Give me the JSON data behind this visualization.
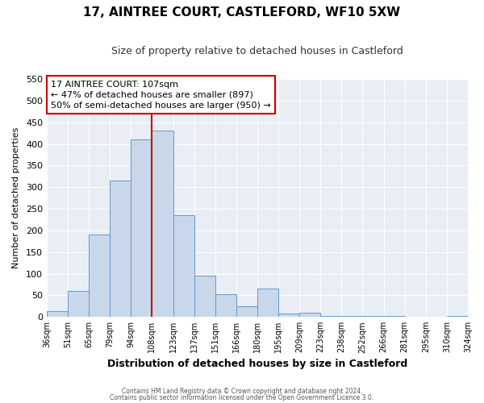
{
  "title": "17, AINTREE COURT, CASTLEFORD, WF10 5XW",
  "subtitle": "Size of property relative to detached houses in Castleford",
  "xlabel": "Distribution of detached houses by size in Castleford",
  "ylabel": "Number of detached properties",
  "bin_labels": [
    "36sqm",
    "51sqm",
    "65sqm",
    "79sqm",
    "94sqm",
    "108sqm",
    "123sqm",
    "137sqm",
    "151sqm",
    "166sqm",
    "180sqm",
    "195sqm",
    "209sqm",
    "223sqm",
    "238sqm",
    "252sqm",
    "266sqm",
    "281sqm",
    "295sqm",
    "310sqm",
    "324sqm"
  ],
  "bar_heights": [
    13,
    60,
    190,
    315,
    410,
    430,
    235,
    95,
    52,
    25,
    65,
    8,
    10,
    3,
    3,
    2,
    2,
    1,
    0,
    2
  ],
  "ylim": [
    0,
    550
  ],
  "yticks": [
    0,
    50,
    100,
    150,
    200,
    250,
    300,
    350,
    400,
    450,
    500,
    550
  ],
  "bar_color": "#c8d8ea",
  "bar_edge_color": "#6699cc",
  "vline_x": 5,
  "vline_color": "#cc0000",
  "annotation_title": "17 AINTREE COURT: 107sqm",
  "annotation_line1": "← 47% of detached houses are smaller (897)",
  "annotation_line2": "50% of semi-detached houses are larger (950) →",
  "annotation_box_facecolor": "#ffffff",
  "annotation_box_edgecolor": "#cc0000",
  "footer_line1": "Contains HM Land Registry data © Crown copyright and database right 2024.",
  "footer_line2": "Contains public sector information licensed under the Open Government Licence 3.0.",
  "background_color": "#ffffff",
  "plot_bg_color": "#e8eef4",
  "grid_color": "#ffffff",
  "title_fontsize": 11,
  "subtitle_fontsize": 9,
  "ylabel_fontsize": 8,
  "xlabel_fontsize": 9
}
